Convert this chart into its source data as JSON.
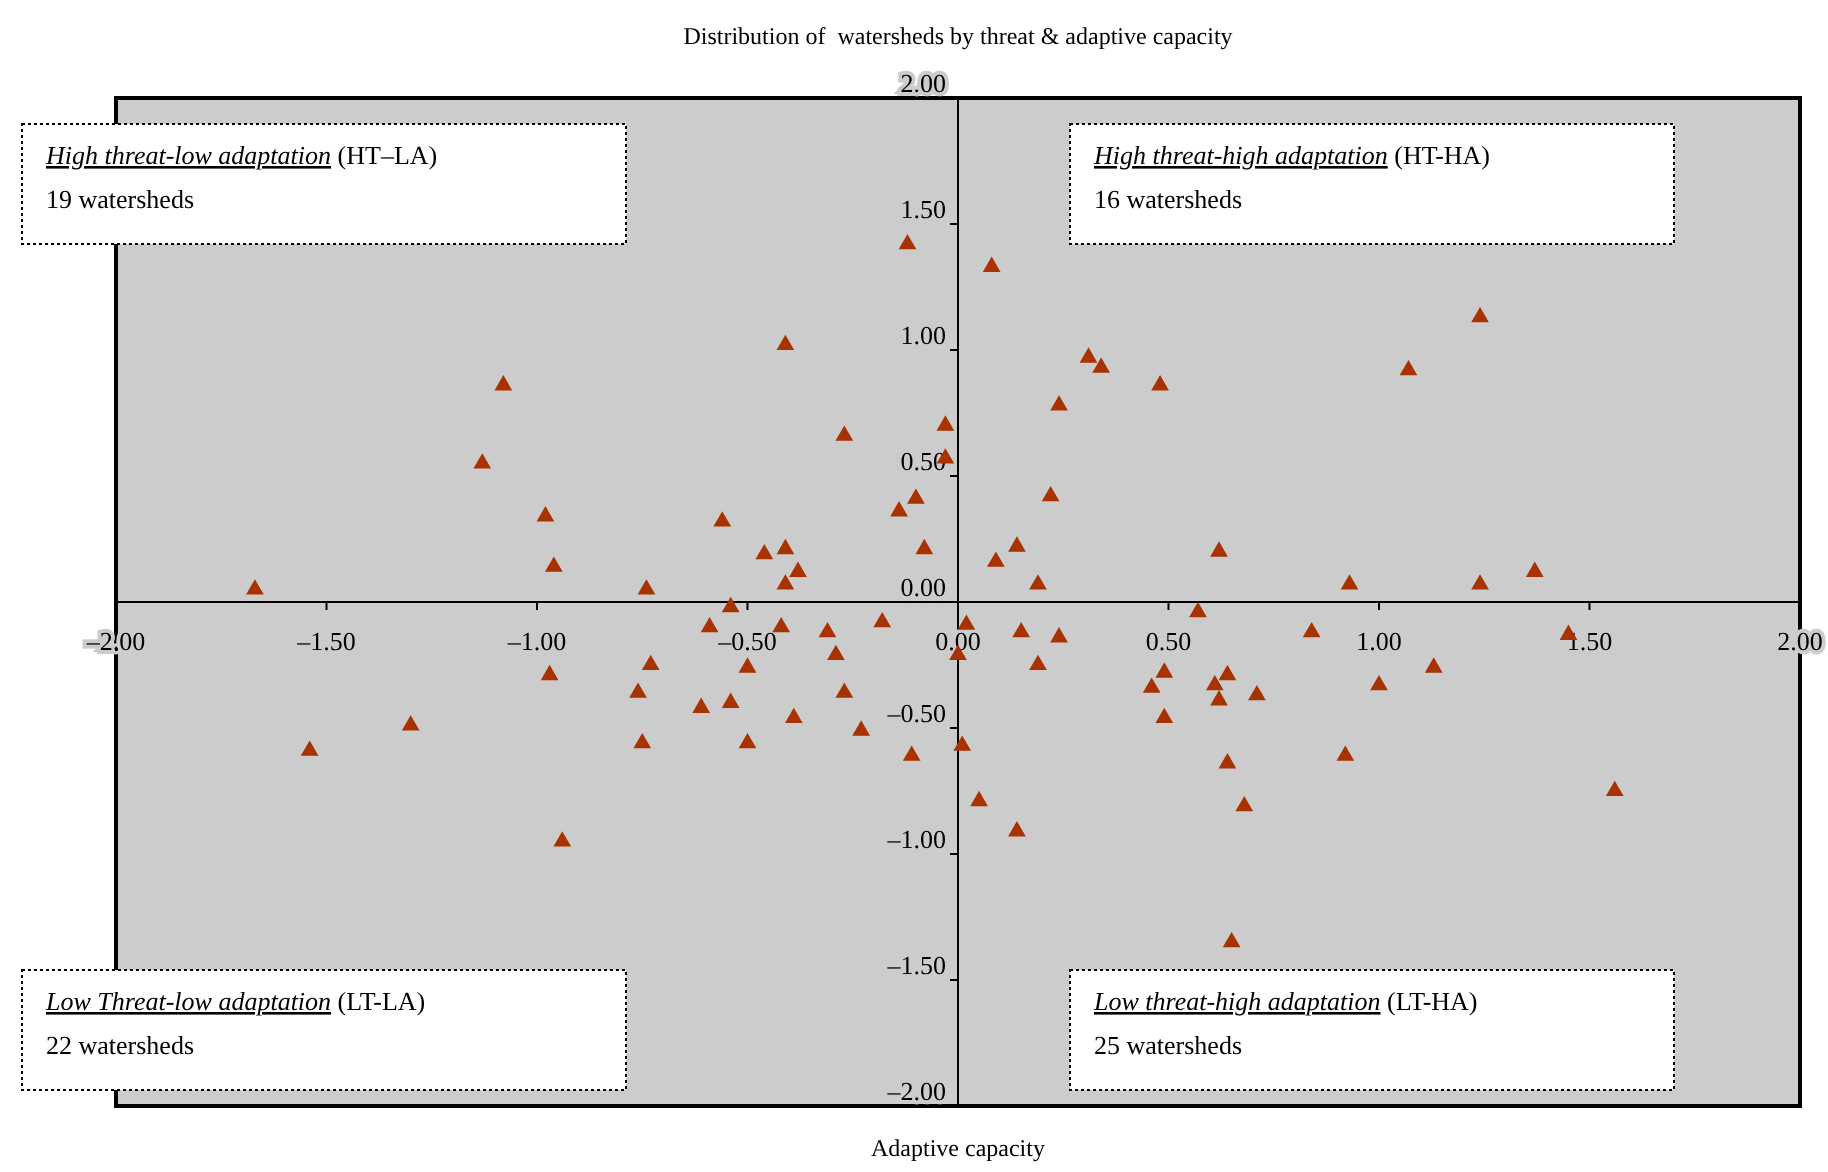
{
  "chart_data": {
    "type": "scatter",
    "title": "Distribution of  watersheds by threat & adaptive capacity",
    "xlabel": "Adaptive capacity",
    "x": [
      -0.12,
      -0.41,
      -1.08,
      -0.27,
      -1.13,
      -0.98,
      -0.56,
      -0.46,
      -0.41,
      -0.38,
      -0.96,
      -0.41,
      -1.67,
      -0.74,
      -0.54,
      -0.14,
      -0.1,
      -0.18,
      -0.59,
      -0.42,
      -0.31,
      0.08,
      -0.03,
      -0.03,
      -0.08,
      0.09,
      0.14,
      0.19,
      0.22,
      0.24,
      0.31,
      0.34,
      0.48,
      0.62,
      0.57,
      0.93,
      1.07,
      1.24,
      1.24,
      1.37,
      0.02,
      0.15,
      0.24,
      0.84,
      1.45,
      -0.5,
      -0.73,
      -0.97,
      -0.29,
      -0.76,
      -0.27,
      -0.61,
      -0.54,
      -0.39,
      -1.3,
      -0.23,
      -0.11,
      -1.54,
      -0.75,
      -0.5,
      -0.94,
      0.0,
      0.19,
      0.49,
      0.46,
      0.61,
      0.64,
      0.62,
      0.71,
      1.0,
      1.13,
      0.49,
      0.01,
      0.05,
      0.14,
      0.64,
      0.68,
      0.92,
      1.56,
      0.65
    ],
    "series": [
      {
        "color": "#a83200",
        "values": [
          1.42,
          1.02,
          0.86,
          0.66,
          0.55,
          0.34,
          0.32,
          0.19,
          0.21,
          0.12,
          0.14,
          0.07,
          0.05,
          0.05,
          -0.02,
          0.36,
          0.41,
          -0.08,
          -0.1,
          -0.1,
          -0.12,
          1.33,
          0.7,
          0.57,
          0.21,
          0.16,
          0.22,
          0.07,
          0.42,
          0.78,
          0.97,
          0.93,
          0.86,
          0.2,
          -0.04,
          0.07,
          0.92,
          1.13,
          0.07,
          0.12,
          -0.09,
          -0.12,
          -0.14,
          -0.12,
          -0.13,
          -0.26,
          -0.25,
          -0.29,
          -0.21,
          -0.36,
          -0.36,
          -0.42,
          -0.4,
          -0.46,
          -0.49,
          -0.51,
          -0.61,
          -0.59,
          -0.56,
          -0.56,
          -0.95,
          -0.21,
          -0.25,
          -0.28,
          -0.34,
          -0.33,
          -0.29,
          -0.39,
          -0.37,
          -0.33,
          -0.26,
          -0.46,
          -0.57,
          -0.79,
          -0.91,
          -0.64,
          -0.81,
          -0.61,
          -0.75,
          -1.35
        ]
      }
    ],
    "xlim": [
      -2,
      2
    ],
    "ylim": [
      -2,
      2
    ],
    "xticks": [
      {
        "value": -2,
        "label": "–2.00"
      },
      {
        "value": -1.5,
        "label": "–1.50"
      },
      {
        "value": -1,
        "label": "–1.00"
      },
      {
        "value": -0.5,
        "label": "–0.50"
      },
      {
        "value": 0,
        "label": "0.00"
      },
      {
        "value": 0.5,
        "label": "0.50"
      },
      {
        "value": 1,
        "label": "1.00"
      },
      {
        "value": 1.5,
        "label": "1.50"
      },
      {
        "value": 2,
        "label": "2.00"
      }
    ],
    "yticks": [
      {
        "value": -2,
        "label": "–2.00"
      },
      {
        "value": -1.5,
        "label": "–1.50"
      },
      {
        "value": -1,
        "label": "–1.00"
      },
      {
        "value": -0.5,
        "label": "–0.50"
      },
      {
        "value": 0,
        "label": "0.00"
      },
      {
        "value": 0.5,
        "label": "0.50"
      },
      {
        "value": 1,
        "label": "1.00"
      },
      {
        "value": 1.5,
        "label": "1.50"
      },
      {
        "value": 2,
        "label": "2.00"
      }
    ],
    "marker": "triangle",
    "grid": false,
    "annotations": [
      "High threat-low adaptation (HT–LA)",
      "19 watersheds",
      "High threat-high adaptation (HT-HA)",
      "16 watersheds",
      "Low Threat-low adaptation (LT-LA)",
      "22 watersheds",
      "Low threat-high adaptation (LT-HA)",
      "25 watersheds"
    ]
  }
}
